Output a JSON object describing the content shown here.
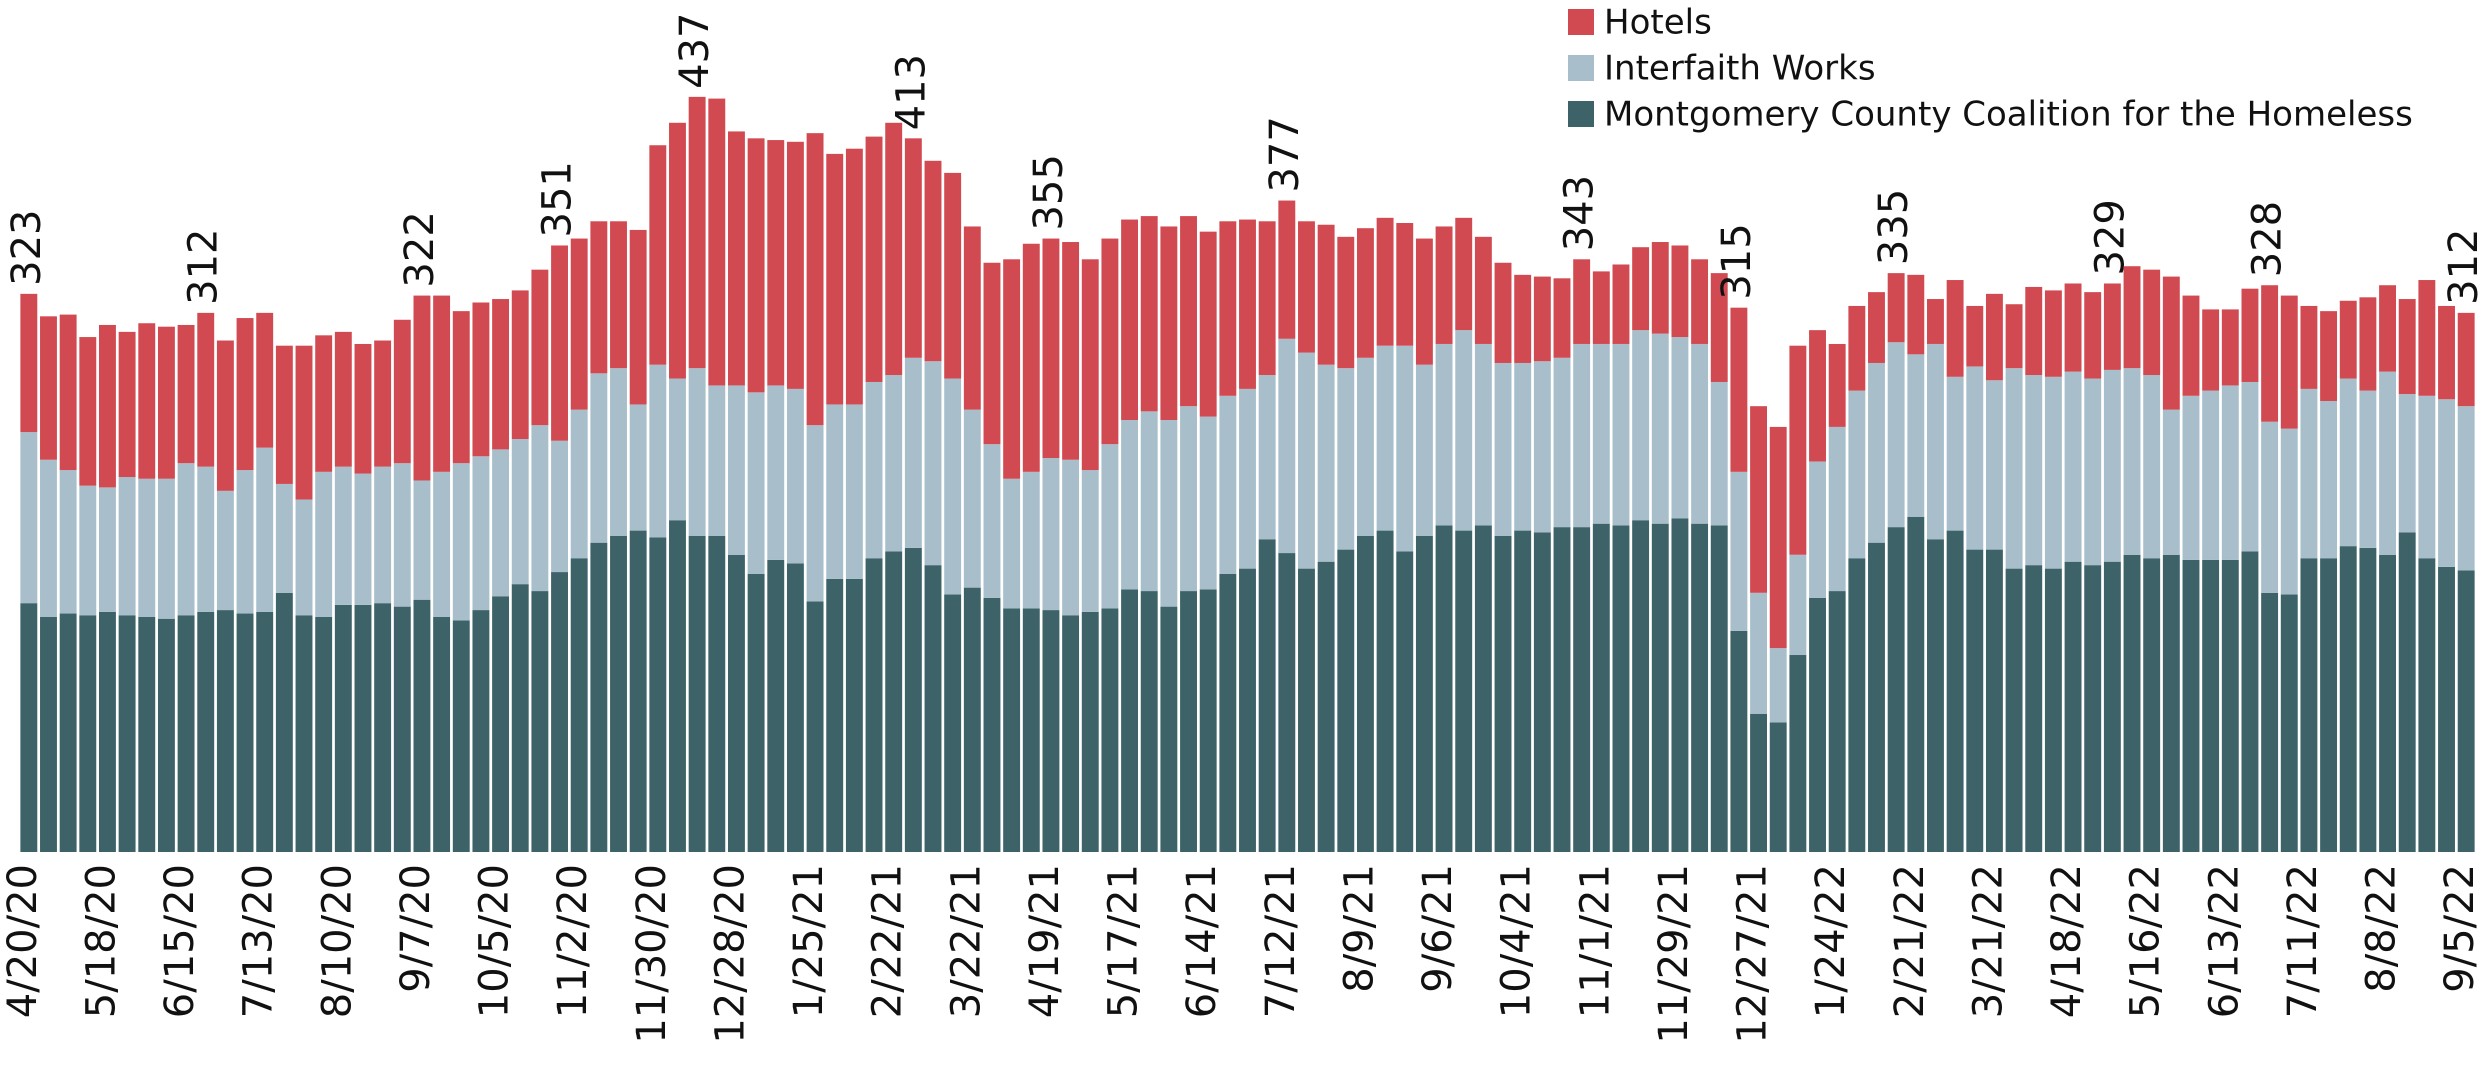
{
  "chart_data": {
    "type": "stacked_bar",
    "categories": [
      "4/20/20",
      null,
      null,
      null,
      "5/18/20",
      null,
      null,
      null,
      "6/15/20",
      null,
      null,
      null,
      "7/13/20",
      null,
      null,
      null,
      "8/10/20",
      null,
      null,
      null,
      "9/7/20",
      null,
      null,
      null,
      "10/5/20",
      null,
      null,
      null,
      "11/2/20",
      null,
      null,
      null,
      "11/30/20",
      null,
      null,
      null,
      "12/28/20",
      null,
      null,
      null,
      "1/25/21",
      null,
      null,
      null,
      "2/22/21",
      null,
      null,
      null,
      "3/22/21",
      null,
      null,
      null,
      "4/19/21",
      null,
      null,
      null,
      "5/17/21",
      null,
      null,
      null,
      "6/14/21",
      null,
      null,
      null,
      "7/12/21",
      null,
      null,
      null,
      "8/9/21",
      null,
      null,
      null,
      "9/6/21",
      null,
      null,
      null,
      "10/4/21",
      null,
      null,
      null,
      "11/1/21",
      null,
      null,
      null,
      "11/29/21",
      null,
      null,
      null,
      "12/27/21",
      null,
      null,
      null,
      "1/24/22",
      null,
      null,
      null,
      "2/21/22",
      null,
      null,
      null,
      "3/21/22",
      null,
      null,
      null,
      "4/18/22",
      null,
      null,
      null,
      "5/16/22",
      null,
      null,
      null,
      "6/13/22",
      null,
      null,
      null,
      "7/11/22",
      null,
      null,
      null,
      "8/8/22",
      null,
      null,
      null,
      "9/5/22"
    ],
    "series": [
      {
        "name": "Montgomery County Coalition for the Homeless",
        "color": "#3d6369",
        "values": [
          144,
          136,
          138,
          137,
          139,
          137,
          136,
          135,
          137,
          139,
          140,
          138,
          139,
          150,
          137,
          136,
          143,
          143,
          144,
          142,
          146,
          136,
          134,
          140,
          148,
          155,
          151,
          162,
          170,
          179,
          183,
          186,
          182,
          192,
          183,
          183,
          172,
          161,
          169,
          167,
          145,
          158,
          158,
          170,
          174,
          176,
          166,
          149,
          153,
          147,
          141,
          141,
          140,
          137,
          139,
          141,
          152,
          151,
          142,
          151,
          152,
          161,
          164,
          181,
          173,
          164,
          168,
          175,
          183,
          186,
          174,
          183,
          189,
          186,
          189,
          183,
          186,
          185,
          188,
          188,
          190,
          189,
          192,
          190,
          193,
          190,
          189,
          128,
          80,
          75,
          114,
          147,
          151,
          170,
          179,
          188,
          194,
          181,
          186,
          175,
          175,
          164,
          166,
          164,
          168,
          166,
          168,
          172,
          170,
          172,
          169,
          169,
          169,
          174,
          150,
          149,
          170,
          170,
          177,
          176,
          172,
          185,
          170,
          165,
          163
        ]
      },
      {
        "name": "Interfaith Works",
        "color": "#a8bfcb",
        "values": [
          99,
          91,
          83,
          75,
          72,
          80,
          80,
          81,
          88,
          84,
          69,
          83,
          95,
          63,
          67,
          84,
          80,
          76,
          79,
          83,
          69,
          84,
          91,
          89,
          85,
          84,
          96,
          76,
          86,
          98,
          97,
          73,
          100,
          82,
          97,
          87,
          98,
          105,
          101,
          101,
          102,
          101,
          101,
          102,
          102,
          110,
          118,
          125,
          103,
          89,
          75,
          79,
          88,
          90,
          82,
          95,
          98,
          104,
          108,
          107,
          100,
          103,
          104,
          95,
          124,
          125,
          114,
          105,
          103,
          107,
          119,
          99,
          105,
          116,
          105,
          100,
          97,
          99,
          98,
          106,
          104,
          105,
          110,
          110,
          105,
          104,
          83,
          92,
          70,
          43,
          58,
          79,
          95,
          97,
          104,
          107,
          94,
          113,
          89,
          106,
          98,
          116,
          110,
          111,
          110,
          108,
          111,
          108,
          106,
          84,
          95,
          98,
          101,
          98,
          99,
          96,
          98,
          91,
          97,
          91,
          106,
          80,
          94,
          97,
          95
        ]
      },
      {
        "name": "Hotels",
        "color": "#d24a51",
        "values": [
          80,
          83,
          90,
          86,
          94,
          84,
          90,
          88,
          80,
          89,
          87,
          88,
          78,
          80,
          89,
          79,
          78,
          75,
          73,
          83,
          107,
          102,
          88,
          89,
          87,
          86,
          90,
          113,
          99,
          88,
          85,
          101,
          127,
          148,
          157,
          166,
          147,
          147,
          142,
          143,
          169,
          145,
          148,
          142,
          146,
          127,
          116,
          119,
          106,
          105,
          127,
          132,
          127,
          126,
          122,
          119,
          116,
          113,
          112,
          110,
          107,
          101,
          98,
          89,
          80,
          76,
          81,
          76,
          75,
          74,
          71,
          73,
          68,
          65,
          62,
          58,
          51,
          49,
          46,
          49,
          42,
          46,
          48,
          53,
          53,
          49,
          63,
          95,
          108,
          128,
          121,
          76,
          48,
          49,
          41,
          40,
          46,
          26,
          56,
          35,
          50,
          37,
          51,
          50,
          51,
          50,
          50,
          59,
          61,
          77,
          58,
          47,
          44,
          54,
          79,
          77,
          48,
          52,
          45,
          54,
          50,
          55,
          67,
          54,
          54
        ]
      }
    ],
    "total_labels": [
      "323",
      null,
      null,
      null,
      null,
      null,
      null,
      null,
      null,
      "312",
      null,
      null,
      null,
      null,
      null,
      null,
      null,
      null,
      null,
      null,
      "322",
      null,
      null,
      null,
      null,
      null,
      null,
      "351",
      null,
      null,
      null,
      null,
      null,
      null,
      "437",
      null,
      null,
      null,
      null,
      null,
      null,
      null,
      null,
      null,
      null,
      "413",
      null,
      null,
      null,
      null,
      null,
      null,
      "355",
      null,
      null,
      null,
      null,
      null,
      null,
      null,
      null,
      null,
      null,
      null,
      "377",
      null,
      null,
      null,
      null,
      null,
      null,
      null,
      null,
      null,
      null,
      null,
      null,
      null,
      null,
      "343",
      null,
      null,
      null,
      null,
      null,
      null,
      null,
      "315",
      null,
      null,
      null,
      null,
      null,
      null,
      null,
      "335",
      null,
      null,
      null,
      null,
      null,
      null,
      null,
      null,
      null,
      null,
      "329",
      null,
      null,
      null,
      null,
      null,
      null,
      null,
      "328",
      null,
      null,
      null,
      null,
      null,
      null,
      null,
      null,
      null,
      "312"
    ]
  }
}
